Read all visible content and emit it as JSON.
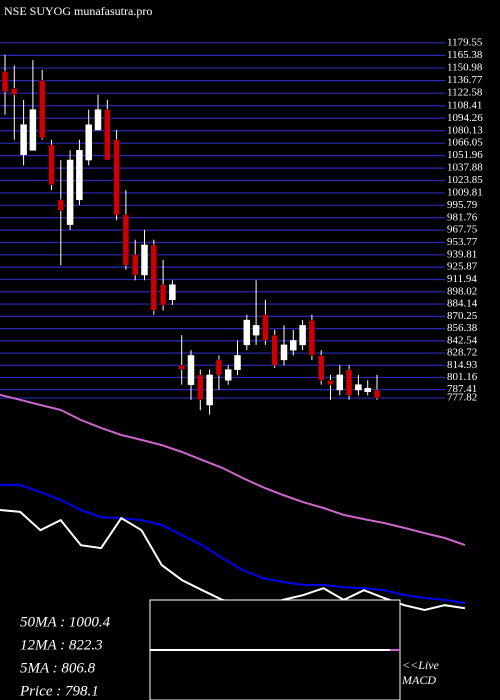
{
  "chart_data": [
    {
      "type": "candlestick",
      "title": "NSE SUYOG munafasutra.pro",
      "ylim": [
        770,
        1185
      ],
      "yticks": [
        1179.55,
        1165.38,
        1150.98,
        1136.77,
        1122.58,
        1108.41,
        1094.26,
        1080.13,
        1066.05,
        1051.96,
        1037.88,
        1023.85,
        1009.81,
        995.79,
        981.76,
        967.75,
        953.77,
        939.81,
        925.87,
        911.94,
        898.02,
        884.14,
        870.25,
        856.38,
        842.54,
        828.72,
        814.93,
        801.16,
        787.41,
        777.82
      ],
      "grid": true,
      "grid_color": "#2a2ab8",
      "up_color": "#ffffff",
      "down_color": "#cc0000",
      "open": [
        1147,
        1128,
        1053,
        1058,
        1137,
        1064,
        1002,
        974,
        1002,
        1047,
        1081,
        1104,
        1070,
        985,
        940,
        917,
        951,
        906,
        889,
        815,
        793,
        804,
        770,
        821,
        798,
        810,
        838,
        849,
        872,
        849,
        821,
        832,
        838,
        866,
        826,
        798,
        787,
        810,
        787,
        785,
        787
      ],
      "high": [
        1166,
        1154,
        1115,
        1160,
        1149,
        1070,
        1047,
        1058,
        1070,
        1104,
        1121,
        1115,
        1081,
        1013,
        957,
        968,
        957,
        934,
        911,
        849,
        832,
        810,
        810,
        826,
        815,
        843,
        872,
        911,
        889,
        855,
        860,
        855,
        866,
        872,
        832,
        804,
        815,
        815,
        804,
        798,
        804
      ],
      "low": [
        1098,
        1070,
        1041,
        1058,
        1070,
        1013,
        928,
        968,
        996,
        1041,
        1081,
        1047,
        979,
        923,
        911,
        911,
        872,
        877,
        883,
        793,
        776,
        764,
        759,
        787,
        793,
        804,
        832,
        838,
        838,
        812,
        815,
        826,
        832,
        821,
        793,
        776,
        781,
        776,
        781,
        781,
        776
      ],
      "close": [
        1124,
        1121,
        1087,
        1104,
        1072,
        1019,
        990,
        1047,
        1058,
        1087,
        1104,
        1047,
        985,
        928,
        917,
        951,
        877,
        883,
        906,
        810,
        826,
        776,
        804,
        804,
        810,
        826,
        866,
        860,
        843,
        815,
        838,
        843,
        860,
        826,
        798,
        793,
        804,
        781,
        793,
        789,
        778
      ]
    },
    {
      "type": "line",
      "ylim": [
        525,
        1470
      ],
      "series": [
        {
          "name": "50MA : 1000.4",
          "color": "#cc66cc",
          "values": [
            1461,
            1446,
            1430,
            1415,
            1384,
            1360,
            1338,
            1323,
            1307,
            1286,
            1261,
            1237,
            1206,
            1178,
            1154,
            1132,
            1114,
            1093,
            1080,
            1068,
            1053,
            1037,
            1022,
            1000.4
          ]
        },
        {
          "name": "12MA : 822.3",
          "color": "#0000ee",
          "values": [
            1185,
            1185,
            1163,
            1139,
            1108,
            1086,
            1083,
            1077,
            1062,
            1031,
            1000,
            960,
            924,
            899,
            887,
            878,
            878,
            871,
            868,
            862,
            847,
            838,
            832,
            822.3
          ]
        },
        {
          "name": "5MA : 806.8",
          "color": "#ffffff",
          "values": [
            1108,
            1102,
            1046,
            1077,
            1000,
            991,
            1083,
            1046,
            939,
            893,
            862,
            832,
            816,
            816,
            832,
            847,
            868,
            832,
            862,
            838,
            816,
            801,
            816,
            806.8
          ]
        }
      ],
      "price_label": "Price   : 798.1",
      "macd_label": [
        "<<Live",
        "MACD"
      ]
    }
  ]
}
